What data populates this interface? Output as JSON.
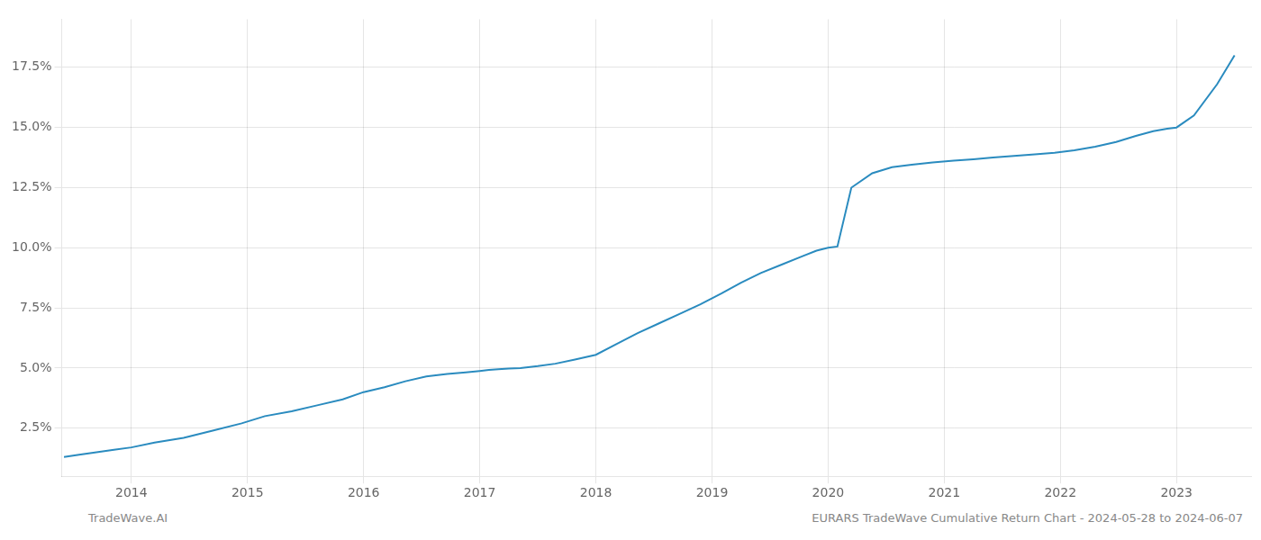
{
  "chart_data": {
    "type": "line",
    "x": [
      2013.42,
      2013.55,
      2013.7,
      2013.85,
      2014.0,
      2014.2,
      2014.45,
      2014.7,
      2014.95,
      2015.15,
      2015.38,
      2015.6,
      2015.82,
      2016.0,
      2016.18,
      2016.36,
      2016.54,
      2016.72,
      2016.88,
      2017.0,
      2017.08,
      2017.16,
      2017.25,
      2017.35,
      2017.5,
      2017.65,
      2017.82,
      2018.0,
      2018.18,
      2018.36,
      2018.54,
      2018.72,
      2018.9,
      2019.08,
      2019.25,
      2019.42,
      2019.6,
      2019.78,
      2019.9,
      2020.0,
      2020.08,
      2020.2,
      2020.38,
      2020.55,
      2020.72,
      2020.9,
      2021.08,
      2021.25,
      2021.42,
      2021.6,
      2021.78,
      2021.95,
      2022.12,
      2022.3,
      2022.48,
      2022.65,
      2022.8,
      2022.92,
      2023.0,
      2023.15,
      2023.35,
      2023.5
    ],
    "values": [
      1.3,
      1.4,
      1.5,
      1.6,
      1.7,
      1.9,
      2.1,
      2.4,
      2.7,
      3.0,
      3.2,
      3.45,
      3.7,
      4.0,
      4.2,
      4.45,
      4.65,
      4.75,
      4.82,
      4.88,
      4.92,
      4.95,
      4.98,
      5.0,
      5.08,
      5.18,
      5.35,
      5.55,
      6.0,
      6.45,
      6.85,
      7.25,
      7.65,
      8.1,
      8.55,
      8.95,
      9.3,
      9.65,
      9.88,
      10.0,
      10.05,
      12.5,
      13.1,
      13.35,
      13.45,
      13.55,
      13.62,
      13.68,
      13.75,
      13.82,
      13.88,
      13.95,
      14.05,
      14.2,
      14.4,
      14.65,
      14.85,
      14.95,
      15.0,
      15.5,
      16.8,
      18.0
    ],
    "color": "#2a8bbf",
    "xlim": [
      2013.4,
      2023.65
    ],
    "ylim": [
      0.5,
      19.5
    ],
    "xticks": [
      2014,
      2015,
      2016,
      2017,
      2018,
      2019,
      2020,
      2021,
      2022,
      2023
    ],
    "yticks": [
      {
        "value": 2.5,
        "label": "2.5%"
      },
      {
        "value": 5.0,
        "label": "5.0%"
      },
      {
        "value": 7.5,
        "label": "7.5%"
      },
      {
        "value": 10.0,
        "label": "10.0%"
      },
      {
        "value": 12.5,
        "label": "12.5%"
      },
      {
        "value": 15.0,
        "label": "15.0%"
      },
      {
        "value": 17.5,
        "label": "17.5%"
      }
    ],
    "grid": true,
    "annotations": [
      "TradeWave.AI",
      "EURARS TradeWave Cumulative Return Chart - 2024-05-28 to 2024-06-07"
    ]
  }
}
